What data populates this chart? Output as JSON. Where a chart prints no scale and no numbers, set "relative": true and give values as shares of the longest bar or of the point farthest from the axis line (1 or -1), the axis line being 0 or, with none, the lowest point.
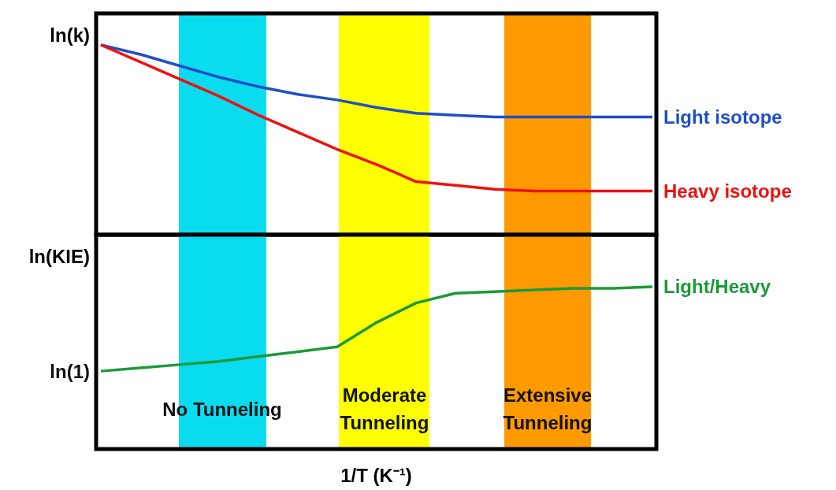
{
  "chart_data": [
    {
      "type": "line",
      "relative": true,
      "ylabel": "ln(k)",
      "legend": false,
      "categories": [
        null,
        null,
        null,
        null,
        null,
        null,
        null,
        null,
        null,
        null,
        null,
        null,
        null,
        null,
        null
      ],
      "series": [
        {
          "name": "Light isotope",
          "color": "#1f4fc8",
          "values": [
            1,
            0.95,
            0.89,
            0.83,
            0.78,
            0.74,
            0.71,
            0.67,
            0.64,
            0.63,
            0.62,
            0.62,
            0.62,
            0.62,
            0.62
          ]
        },
        {
          "name": "Heavy isotope",
          "color": "#ee1111",
          "values": [
            1,
            0.91,
            0.82,
            0.73,
            0.63,
            0.54,
            0.45,
            0.37,
            0.28,
            0.26,
            0.24,
            0.23,
            0.23,
            0.23,
            0.23
          ]
        }
      ]
    },
    {
      "type": "line",
      "relative": true,
      "ylabel": "ln(KIE)",
      "xlabel": "1/T (K⁻¹)",
      "legend": false,
      "categories": [
        null,
        null,
        null,
        null,
        null,
        null,
        null,
        null,
        null,
        null,
        null,
        null,
        null,
        null,
        null
      ],
      "series": [
        {
          "name": "Light/Heavy",
          "color": "#1a9a3a",
          "values": [
            0.48,
            0.5,
            0.52,
            0.54,
            0.57,
            0.6,
            0.63,
            0.78,
            0.9,
            0.96,
            0.97,
            0.98,
            0.99,
            0.99,
            1
          ]
        }
      ],
      "annotations": [
        "ln(1)",
        "No Tunneling",
        "Moderate\nTunneling",
        "Extensive\nTunneling"
      ]
    }
  ]
}
